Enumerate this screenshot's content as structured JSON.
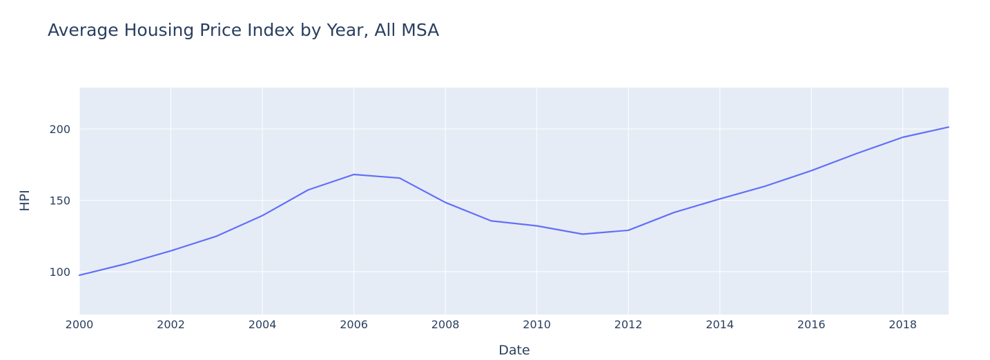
{
  "chart_data": {
    "type": "line",
    "title": "Average Housing Price Index by Year, All MSA",
    "xlabel": "Date",
    "ylabel": "HPI",
    "xlim": [
      2000,
      2019
    ],
    "ylim": [
      70,
      229
    ],
    "xticks": [
      2000,
      2002,
      2004,
      2006,
      2008,
      2010,
      2012,
      2014,
      2016,
      2018
    ],
    "yticks": [
      100,
      150,
      200
    ],
    "grid": true,
    "series": [
      {
        "name": "HPI",
        "color": "#636efa",
        "x": [
          2000,
          2001,
          2002,
          2003,
          2004,
          2005,
          2006,
          2007,
          2008,
          2009,
          2010,
          2011,
          2012,
          2013,
          2014,
          2015,
          2016,
          2017,
          2018,
          2019
        ],
        "values": [
          97.5,
          105.4,
          114.6,
          124.9,
          139.3,
          157.3,
          168.1,
          165.6,
          148.5,
          135.6,
          132.1,
          126.3,
          129.0,
          141.5,
          151.0,
          160.0,
          170.8,
          182.9,
          194.2,
          201.3
        ]
      }
    ]
  },
  "colors": {
    "plot_background": "#e5ecf6",
    "grid": "#ffffff",
    "text": "#2a3f5f",
    "line": "#636efa"
  }
}
